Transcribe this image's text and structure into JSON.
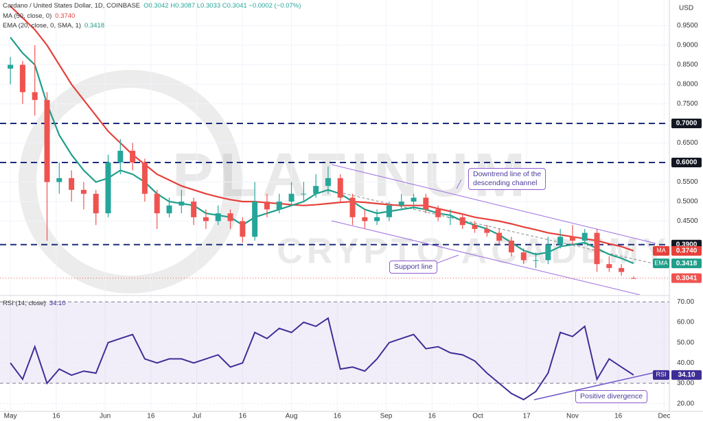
{
  "chart_data": [
    {
      "type": "candlestick",
      "title": "Cardano / United States Dollar, 1D, COINBASE",
      "ohlc_text": "O0.3042  H0.3087  L0.3033  C0.3041  −0.0002 (−0.07%)",
      "unit": "USD",
      "up_color": "#26a69a",
      "down_color": "#ef5350",
      "x": [
        0,
        4,
        8,
        12,
        16,
        20,
        24,
        28,
        32,
        36,
        40,
        44,
        48,
        52,
        56,
        60,
        64,
        68,
        72,
        76,
        80,
        84,
        88,
        92,
        96,
        100,
        104,
        108,
        112,
        116,
        120,
        124,
        128,
        132,
        136,
        140,
        144,
        148,
        152,
        156,
        160,
        164,
        168,
        172,
        176,
        180,
        184,
        188,
        192,
        196,
        200,
        204
      ],
      "open": [
        0.84,
        0.85,
        0.78,
        0.76,
        0.55,
        0.56,
        0.53,
        0.52,
        0.47,
        0.6,
        0.63,
        0.6,
        0.52,
        0.47,
        0.49,
        0.5,
        0.46,
        0.45,
        0.47,
        0.45,
        0.41,
        0.5,
        0.48,
        0.5,
        0.52,
        0.52,
        0.54,
        0.56,
        0.51,
        0.46,
        0.45,
        0.46,
        0.49,
        0.5,
        0.51,
        0.48,
        0.46,
        0.46,
        0.44,
        0.43,
        0.42,
        0.4,
        0.37,
        0.35,
        0.35,
        0.39,
        0.41,
        0.4,
        0.42,
        0.34,
        0.33,
        0.3042
      ],
      "high": [
        0.87,
        0.86,
        0.9,
        0.78,
        0.6,
        0.58,
        0.55,
        0.53,
        0.62,
        0.66,
        0.65,
        0.61,
        0.53,
        0.51,
        0.53,
        0.51,
        0.48,
        0.49,
        0.48,
        0.46,
        0.55,
        0.52,
        0.52,
        0.55,
        0.55,
        0.57,
        0.59,
        0.57,
        0.52,
        0.48,
        0.48,
        0.5,
        0.52,
        0.52,
        0.52,
        0.49,
        0.48,
        0.47,
        0.45,
        0.44,
        0.43,
        0.41,
        0.38,
        0.37,
        0.41,
        0.43,
        0.44,
        0.43,
        0.43,
        0.36,
        0.34,
        0.3087
      ],
      "low": [
        0.8,
        0.75,
        0.72,
        0.4,
        0.52,
        0.5,
        0.48,
        0.44,
        0.46,
        0.57,
        0.58,
        0.5,
        0.43,
        0.46,
        0.47,
        0.44,
        0.43,
        0.44,
        0.43,
        0.395,
        0.4,
        0.46,
        0.47,
        0.49,
        0.5,
        0.51,
        0.52,
        0.5,
        0.44,
        0.43,
        0.44,
        0.45,
        0.48,
        0.48,
        0.47,
        0.45,
        0.44,
        0.43,
        0.42,
        0.41,
        0.39,
        0.36,
        0.34,
        0.33,
        0.34,
        0.38,
        0.39,
        0.39,
        0.32,
        0.32,
        0.31,
        0.3033
      ],
      "close": [
        0.85,
        0.78,
        0.76,
        0.55,
        0.56,
        0.53,
        0.52,
        0.47,
        0.6,
        0.63,
        0.6,
        0.52,
        0.47,
        0.49,
        0.5,
        0.46,
        0.45,
        0.47,
        0.45,
        0.41,
        0.5,
        0.48,
        0.5,
        0.52,
        0.52,
        0.54,
        0.56,
        0.51,
        0.46,
        0.45,
        0.46,
        0.49,
        0.5,
        0.51,
        0.48,
        0.46,
        0.46,
        0.44,
        0.43,
        0.42,
        0.4,
        0.37,
        0.35,
        0.35,
        0.39,
        0.41,
        0.4,
        0.42,
        0.34,
        0.33,
        0.32,
        0.3041
      ],
      "last_label": "0.3041",
      "series": [
        {
          "name": "MA (50, close, 0)",
          "short": "MA",
          "color": "#e5403a",
          "last_label": "0.3740",
          "values": [
            1.0,
            0.97,
            0.94,
            0.9,
            0.85,
            0.8,
            0.76,
            0.72,
            0.68,
            0.65,
            0.62,
            0.595,
            0.57,
            0.555,
            0.54,
            0.53,
            0.52,
            0.512,
            0.505,
            0.5,
            0.5,
            0.497,
            0.495,
            0.492,
            0.49,
            0.492,
            0.495,
            0.498,
            0.5,
            0.498,
            0.495,
            0.492,
            0.49,
            0.49,
            0.49,
            0.482,
            0.475,
            0.468,
            0.46,
            0.455,
            0.45,
            0.443,
            0.435,
            0.428,
            0.42,
            0.415,
            0.41,
            0.405,
            0.4,
            0.392,
            0.385,
            0.374
          ]
        },
        {
          "name": "EMA (20, close, 0, SMA, 1)",
          "short": "EMA",
          "color": "#1f9e89",
          "last_label": "0.3418",
          "values": [
            0.92,
            0.88,
            0.85,
            0.75,
            0.67,
            0.62,
            0.58,
            0.55,
            0.56,
            0.58,
            0.57,
            0.55,
            0.52,
            0.5,
            0.495,
            0.49,
            0.47,
            0.465,
            0.46,
            0.44,
            0.46,
            0.47,
            0.48,
            0.49,
            0.5,
            0.52,
            0.53,
            0.52,
            0.5,
            0.48,
            0.47,
            0.475,
            0.48,
            0.485,
            0.48,
            0.47,
            0.465,
            0.45,
            0.44,
            0.43,
            0.415,
            0.395,
            0.375,
            0.365,
            0.37,
            0.385,
            0.39,
            0.395,
            0.38,
            0.365,
            0.355,
            0.3418
          ]
        }
      ],
      "levels": [
        {
          "value": 0.7,
          "label": "0.7000"
        },
        {
          "value": 0.6,
          "label": "0.6000"
        },
        {
          "value": 0.39,
          "label": "0.3900"
        }
      ],
      "level_color": "#1a2a7a",
      "xlim": [
        -3.4,
        215.7
      ],
      "xticks": [
        {
          "value": 0,
          "label": "May"
        },
        {
          "value": 15,
          "label": "16"
        },
        {
          "value": 31,
          "label": "Jun"
        },
        {
          "value": 46,
          "label": "16"
        },
        {
          "value": 61,
          "label": "Jul"
        },
        {
          "value": 76,
          "label": "16"
        },
        {
          "value": 92,
          "label": "Aug"
        },
        {
          "value": 107,
          "label": "16"
        },
        {
          "value": 123,
          "label": "Sep"
        },
        {
          "value": 138,
          "label": "16"
        },
        {
          "value": 153,
          "label": "Oct"
        },
        {
          "value": 169,
          "label": "17"
        },
        {
          "value": 184,
          "label": "Nov"
        },
        {
          "value": 199,
          "label": "16"
        },
        {
          "value": 214,
          "label": "Dec"
        }
      ],
      "ylim": [
        0.2614,
        1.0158
      ],
      "yticks": [
        {
          "value": 0.45,
          "label": "0.4500"
        },
        {
          "value": 0.5,
          "label": "0.5000"
        },
        {
          "value": 0.55,
          "label": "0.5500"
        },
        {
          "value": 0.65,
          "label": "0.6500"
        },
        {
          "value": 0.75,
          "label": "0.7500"
        },
        {
          "value": 0.8,
          "label": "0.8000"
        },
        {
          "value": 0.85,
          "label": "0.8500"
        },
        {
          "value": 0.9,
          "label": "0.9000"
        },
        {
          "value": 0.95,
          "label": "0.9500"
        }
      ],
      "grid": true,
      "annotations": {
        "channel": [
          "Downtrend line of the",
          "descending channel"
        ],
        "support": "Support line"
      },
      "watermark": [
        "PLATINUM",
        "CRYPTO ACADEMY"
      ]
    },
    {
      "type": "line",
      "title": "RSI (14, close)",
      "short": "RSI",
      "last_label": "34.10",
      "x": [
        0,
        4,
        8,
        12,
        16,
        20,
        24,
        28,
        32,
        36,
        40,
        44,
        48,
        52,
        56,
        60,
        64,
        68,
        72,
        76,
        80,
        84,
        88,
        92,
        96,
        100,
        104,
        108,
        112,
        116,
        120,
        124,
        128,
        132,
        136,
        140,
        144,
        148,
        152,
        156,
        160,
        164,
        168,
        172,
        176,
        180,
        184,
        188,
        192,
        196,
        200,
        204
      ],
      "series": [
        {
          "name": "RSI",
          "color": "#3f2d96",
          "values": [
            40,
            32,
            48,
            30,
            37,
            34,
            36,
            35,
            50,
            52,
            54,
            42,
            40,
            42,
            42,
            40,
            42,
            44,
            38,
            40,
            55,
            52,
            57,
            55,
            60,
            58,
            62,
            37,
            38,
            36,
            42,
            50,
            52,
            54,
            47,
            48,
            45,
            44,
            41,
            35,
            30,
            25,
            22,
            26,
            35,
            55,
            53,
            58,
            32,
            42,
            38,
            34.1
          ]
        }
      ],
      "band": [
        30,
        70
      ],
      "ylim": [
        16.2,
        72.8
      ],
      "yticks": [
        {
          "value": 20,
          "label": "20.00"
        },
        {
          "value": 30,
          "label": "30.00"
        },
        {
          "value": 40,
          "label": "40.00"
        },
        {
          "value": 50,
          "label": "50.00"
        },
        {
          "value": 60,
          "label": "60.00"
        },
        {
          "value": 70,
          "label": "70.00"
        }
      ],
      "annotation": "Positive divergence"
    }
  ]
}
